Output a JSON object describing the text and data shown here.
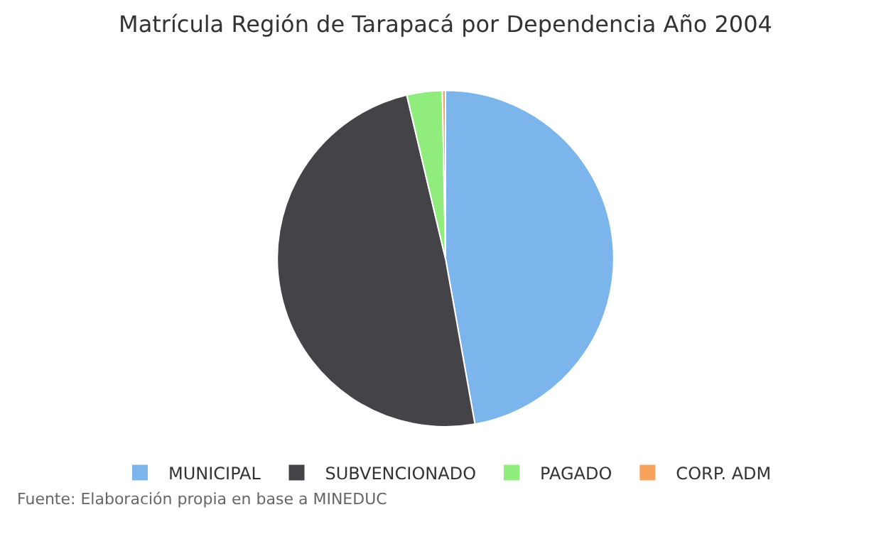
{
  "chart_data": {
    "type": "pie",
    "title": "Matrícula Región de Tarapacá por Dependencia Año 2004",
    "categories": [
      "MUNICIPAL",
      "SUBVENCIONADO",
      "PAGADO",
      "CORP. ADM"
    ],
    "values": [
      47.2,
      49.1,
      3.4,
      0.3
    ],
    "colors": [
      "#7cb5ec",
      "#434348",
      "#90ed7d",
      "#f7a35c"
    ],
    "legend": "bottom",
    "annotations": [
      "Fuente: Elaboración propia en base a MINEDUC"
    ]
  }
}
